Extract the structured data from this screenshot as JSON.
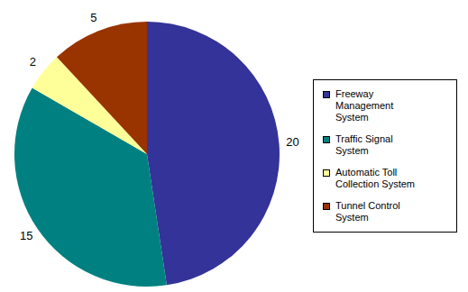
{
  "chart_data": {
    "type": "pie",
    "categories": [
      "Freeway Management System",
      "Traffic Signal System",
      "Automatic Toll Collection System",
      "Tunnel Control System"
    ],
    "values": [
      20,
      15,
      2,
      5
    ],
    "colors": [
      "#333399",
      "#008080",
      "#ffff99",
      "#993300"
    ],
    "data_labels": true,
    "legend": "right"
  }
}
